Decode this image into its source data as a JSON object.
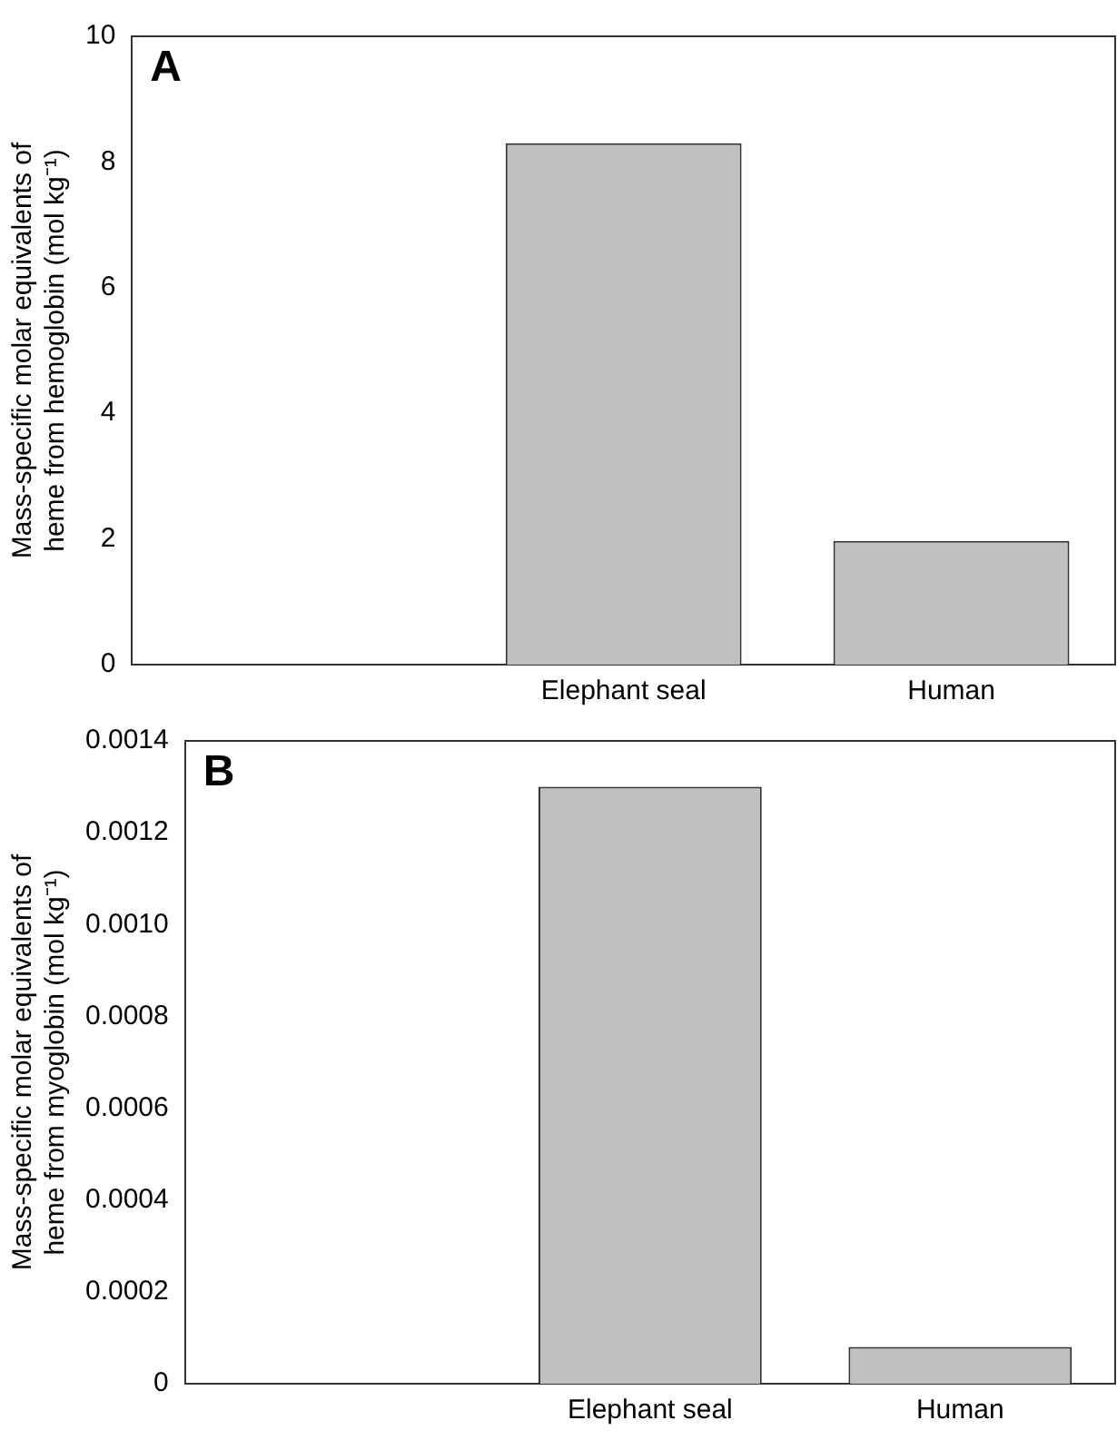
{
  "chart_data": [
    {
      "type": "bar",
      "ylabel": "Mass-specific molar equivalents of\nheme from hemoglobin (mol kg⁻¹)",
      "categories": [
        null,
        "Elephant seal",
        "Human"
      ],
      "values": [
        null,
        8.3,
        1.97
      ],
      "color": "#c0c0c0",
      "ylim": [
        0,
        10
      ],
      "yticks": [
        0,
        2,
        4,
        6,
        8,
        10
      ],
      "grid": false,
      "legend": false,
      "annotations": [
        "A"
      ]
    },
    {
      "type": "bar",
      "ylabel": "Mass-specific molar equivalents of\nheme from myoglobin (mol kg⁻¹)",
      "categories": [
        null,
        "Elephant seal",
        "Human"
      ],
      "values": [
        null,
        0.0013,
        8e-05
      ],
      "color": "#c0c0c0",
      "ylim": [
        0,
        0.0014
      ],
      "yticks": [
        0,
        0.0002,
        0.0004,
        0.0006,
        0.0008,
        {
          "value": 0.001,
          "label": "0.0010"
        },
        0.0012,
        0.0014
      ],
      "grid": false,
      "legend": false,
      "annotations": [
        "B"
      ]
    }
  ]
}
